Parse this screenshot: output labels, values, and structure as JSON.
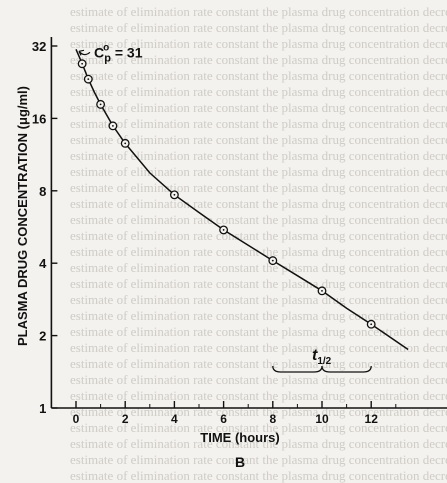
{
  "chart_data": {
    "type": "line",
    "y_scale": "log2",
    "xlabel": "TIME (hours)",
    "ylabel": "PLASMA DRUG CONCENTRATION (μg/ml)",
    "panel_label": "B",
    "xlim": [
      -1,
      15.5
    ],
    "ylim": [
      1,
      32
    ],
    "x_ticks": [
      0,
      2,
      4,
      6,
      8,
      10,
      12
    ],
    "y_ticks": [
      1,
      2,
      4,
      8,
      16,
      32
    ],
    "annotations": {
      "intercept": {
        "x": 0,
        "y": 31,
        "text": "C",
        "sub": "p",
        "sup": "o",
        "rest": " = 31"
      },
      "half_life": {
        "x_start": 8,
        "x_end": 12,
        "text": "t",
        "sub": "1/2"
      }
    },
    "curve": {
      "x": [
        0,
        0.25,
        0.5,
        0.75,
        1,
        1.5,
        2,
        3,
        4,
        5,
        6,
        7,
        8,
        9,
        10,
        11,
        12,
        13.5
      ],
      "y": [
        31,
        27,
        23.3,
        20.5,
        18.3,
        14.9,
        12.6,
        9.5,
        7.7,
        6.5,
        5.5,
        4.75,
        4.1,
        3.55,
        3.07,
        2.6,
        2.23,
        1.75
      ]
    },
    "points": {
      "x": [
        0.25,
        0.5,
        1,
        1.5,
        2,
        4,
        6,
        8,
        10,
        12
      ],
      "y": [
        27,
        23.3,
        18.3,
        14.9,
        12.6,
        7.7,
        5.5,
        4.1,
        3.07,
        2.23
      ]
    }
  }
}
